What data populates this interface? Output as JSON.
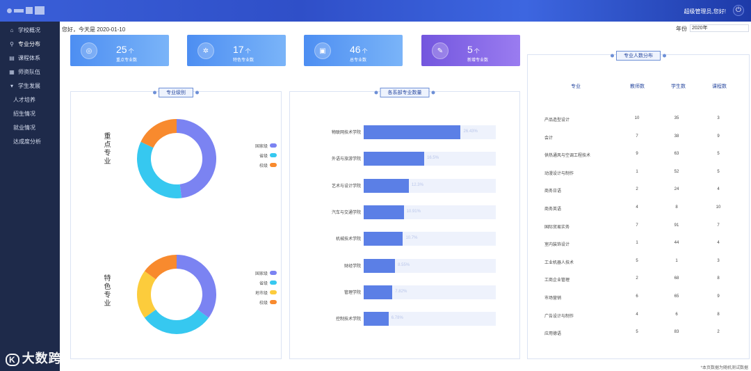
{
  "header": {
    "user_greeting": "超级管理员,您好!",
    "power_icon": "power-icon"
  },
  "sidebar": {
    "items": [
      {
        "label": "学校概况",
        "icon": "school-icon",
        "active": false
      },
      {
        "label": "专业分布",
        "icon": "microscope-icon",
        "active": true
      },
      {
        "label": "课程体系",
        "icon": "book-icon",
        "active": false
      },
      {
        "label": "师资队伍",
        "icon": "teacher-icon",
        "active": false
      },
      {
        "label": "学生发展",
        "icon": "graduation-cap-icon",
        "active": false
      }
    ],
    "subitems": [
      "人才培养",
      "招生情况",
      "就业情况",
      "达成度分析"
    ]
  },
  "greeting": "您好，今天是 2020-01-10",
  "year_filter": {
    "label": "年份",
    "value": "2020年"
  },
  "stat_cards": [
    {
      "value": "25",
      "unit": "个",
      "label": "重点专业数",
      "icon": "target-icon",
      "color": "#4f8ff0"
    },
    {
      "value": "17",
      "unit": "个",
      "label": "特色专业数",
      "icon": "gear-icon",
      "color": "#4f8ff0"
    },
    {
      "value": "46",
      "unit": "个",
      "label": "总专业数",
      "icon": "briefcase-icon",
      "color": "#4f8ff0"
    },
    {
      "value": "5",
      "unit": "个",
      "label": "新增专业数",
      "icon": "pen-icon",
      "color": "#7b5fe0"
    }
  ],
  "level_panel": {
    "title": "专业级别",
    "key_label": "重点专业",
    "feature_label": "特色专业",
    "key_legend": [
      {
        "label": "国家级",
        "color": "#7b83f2"
      },
      {
        "label": "省级",
        "color": "#36c8f0"
      },
      {
        "label": "校级",
        "color": "#f88a2e"
      }
    ],
    "feature_legend": [
      {
        "label": "国家级",
        "color": "#7b83f2"
      },
      {
        "label": "省级",
        "color": "#36c8f0"
      },
      {
        "label": "地市级",
        "color": "#fccc3c"
      },
      {
        "label": "校级",
        "color": "#f88a2e"
      }
    ]
  },
  "dept_panel": {
    "title": "各系部专业数量",
    "rows": [
      {
        "name": "物联网技术学院",
        "pct": "26.43%",
        "value": 26.43
      },
      {
        "name": "外语与旅游学院",
        "pct": "16.5%",
        "value": 16.5
      },
      {
        "name": "艺术与设计学院",
        "pct": "12.3%",
        "value": 12.3
      },
      {
        "name": "汽车与交通学院",
        "pct": "10.91%",
        "value": 10.91
      },
      {
        "name": "机械技术学院",
        "pct": "10.7%",
        "value": 10.7
      },
      {
        "name": "财经学院",
        "pct": "8.55%",
        "value": 8.55
      },
      {
        "name": "管理学院",
        "pct": "7.82%",
        "value": 7.82
      },
      {
        "name": "控制技术学院",
        "pct": "6.78%",
        "value": 6.78
      }
    ]
  },
  "headcount_panel": {
    "title": "专业人数分布",
    "columns": [
      "专业",
      "教师数",
      "学生数",
      "课程数"
    ],
    "rows": [
      [
        "产品造型设计",
        "10",
        "35",
        "3"
      ],
      [
        "会计",
        "7",
        "38",
        "9"
      ],
      [
        "供热通风与空调工程技术",
        "9",
        "63",
        "5"
      ],
      [
        "动漫设计与制作",
        "1",
        "52",
        "5"
      ],
      [
        "商务日语",
        "2",
        "24",
        "4"
      ],
      [
        "商务英语",
        "4",
        "8",
        "10"
      ],
      [
        "国际贸易实务",
        "7",
        "91",
        "7"
      ],
      [
        "室内装饰设计",
        "1",
        "44",
        "4"
      ],
      [
        "工业机器人技术",
        "5",
        "1",
        "3"
      ],
      [
        "工商企业管理",
        "2",
        "68",
        "8"
      ],
      [
        "市场营销",
        "6",
        "65",
        "9"
      ],
      [
        "广告设计与制作",
        "4",
        "6",
        "8"
      ],
      [
        "应用德语",
        "5",
        "83",
        "2"
      ]
    ]
  },
  "footnote": "*本页数据为随机测试数据",
  "watermark": "大数跨境",
  "chart_data": [
    {
      "type": "pie",
      "title": "重点专业",
      "labels": [
        "国家级",
        "省级",
        "校级"
      ],
      "values": [
        48,
        34,
        18
      ],
      "colors": [
        "#7b83f2",
        "#36c8f0",
        "#f88a2e"
      ]
    },
    {
      "type": "pie",
      "title": "特色专业",
      "labels": [
        "国家级",
        "省级",
        "地市级",
        "校级"
      ],
      "values": [
        35,
        30,
        20,
        15
      ],
      "colors": [
        "#7b83f2",
        "#36c8f0",
        "#fccc3c",
        "#f88a2e"
      ]
    },
    {
      "type": "bar",
      "title": "各系部专业数量",
      "categories": [
        "物联网技术学院",
        "外语与旅游学院",
        "艺术与设计学院",
        "汽车与交通学院",
        "机械技术学院",
        "财经学院",
        "管理学院",
        "控制技术学院"
      ],
      "values": [
        26.43,
        16.5,
        12.3,
        10.91,
        10.7,
        8.55,
        7.82,
        6.78
      ],
      "orientation": "horizontal"
    }
  ]
}
